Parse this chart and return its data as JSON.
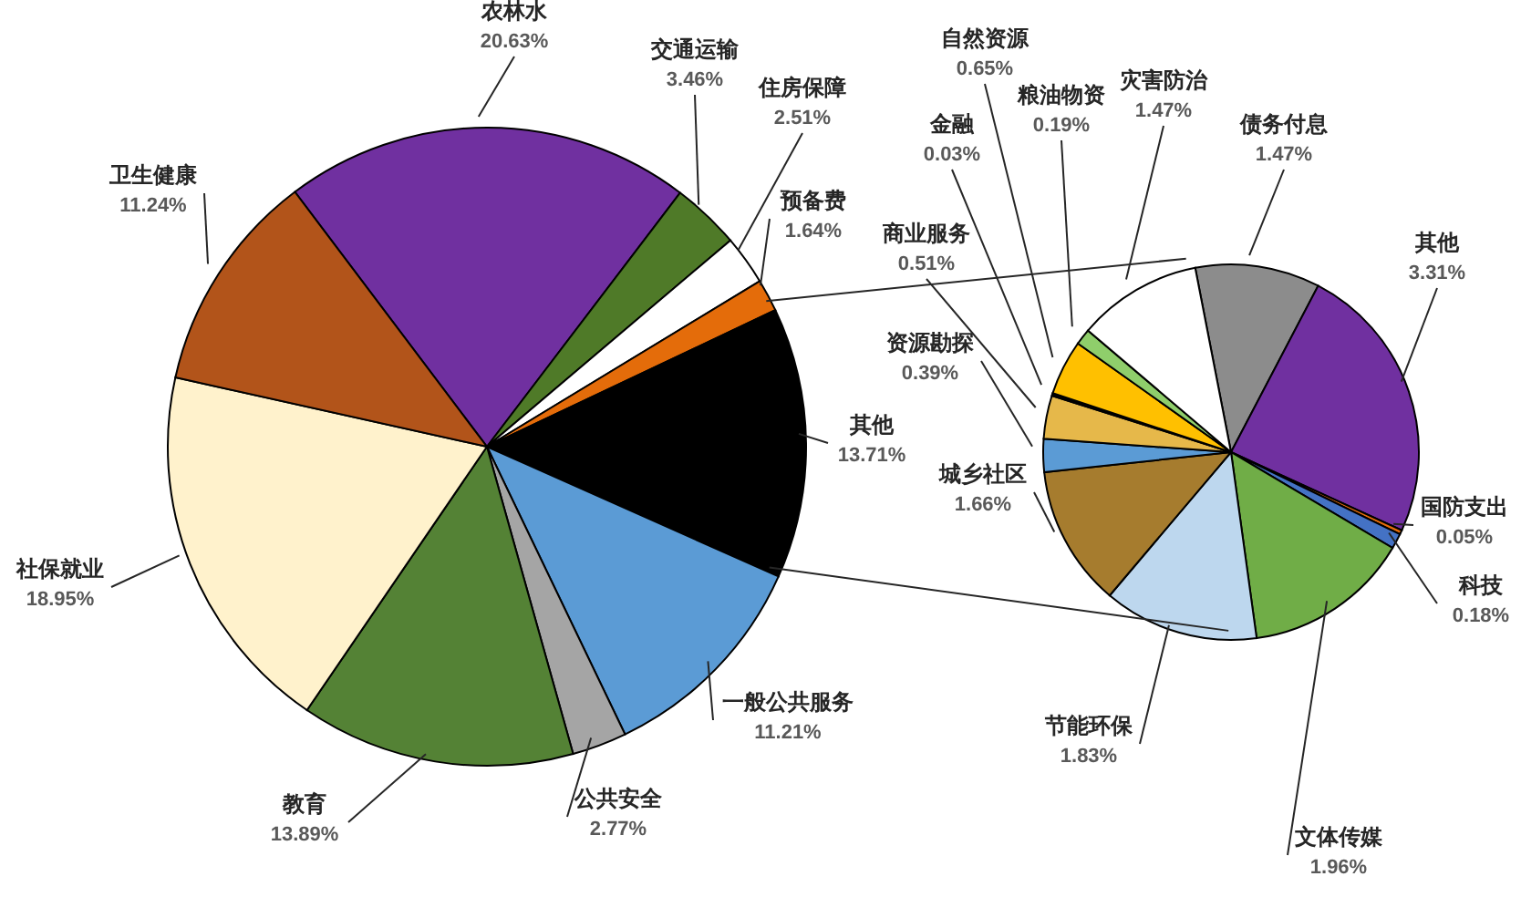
{
  "chart_data": [
    {
      "type": "pie",
      "categories": [
        "农林水",
        "交通运输",
        "住房保障",
        "预备费",
        "其他",
        "一般公共服务",
        "公共安全",
        "教育",
        "社保就业",
        "卫生健康"
      ],
      "values": [
        20.63,
        3.46,
        2.51,
        1.64,
        13.71,
        11.21,
        2.77,
        13.89,
        18.95,
        11.24
      ],
      "value_labels": [
        "20.63%",
        "3.46%",
        "2.51%",
        "1.64%",
        "13.71%",
        "11.21%",
        "2.77%",
        "13.89%",
        "18.95%",
        "11.24%"
      ],
      "colors": [
        "#7030a0",
        "#4f7a28",
        "#ffffff",
        "#e46c0a",
        "#000000",
        "#5b9bd5",
        "#a5a5a5",
        "#548235",
        "#fff2cc",
        "#b2541a"
      ]
    },
    {
      "type": "pie",
      "categories": [
        "债务付息",
        "其他",
        "国防支出",
        "科技",
        "文体传媒",
        "节能环保",
        "城乡社区",
        "资源勘探",
        "商业服务",
        "金融",
        "自然资源",
        "粮油物资",
        "灾害防治"
      ],
      "values": [
        1.47,
        3.31,
        0.05,
        0.18,
        1.96,
        1.83,
        1.66,
        0.39,
        0.51,
        0.03,
        0.65,
        0.19,
        1.47
      ],
      "value_labels": [
        "1.47%",
        "3.31%",
        "0.05%",
        "0.18%",
        "1.96%",
        "1.83%",
        "1.66%",
        "0.39%",
        "0.51%",
        "0.03%",
        "0.65%",
        "0.19%",
        "1.47%"
      ],
      "colors": [
        "#8c8c8c",
        "#7030a0",
        "#e46c0a",
        "#4472c4",
        "#70ad47",
        "#bdd7ee",
        "#a67c2e",
        "#5b9bd5",
        "#e6b84a",
        "#000000",
        "#ffc000",
        "#8fce6b",
        "#ffffff"
      ]
    }
  ]
}
